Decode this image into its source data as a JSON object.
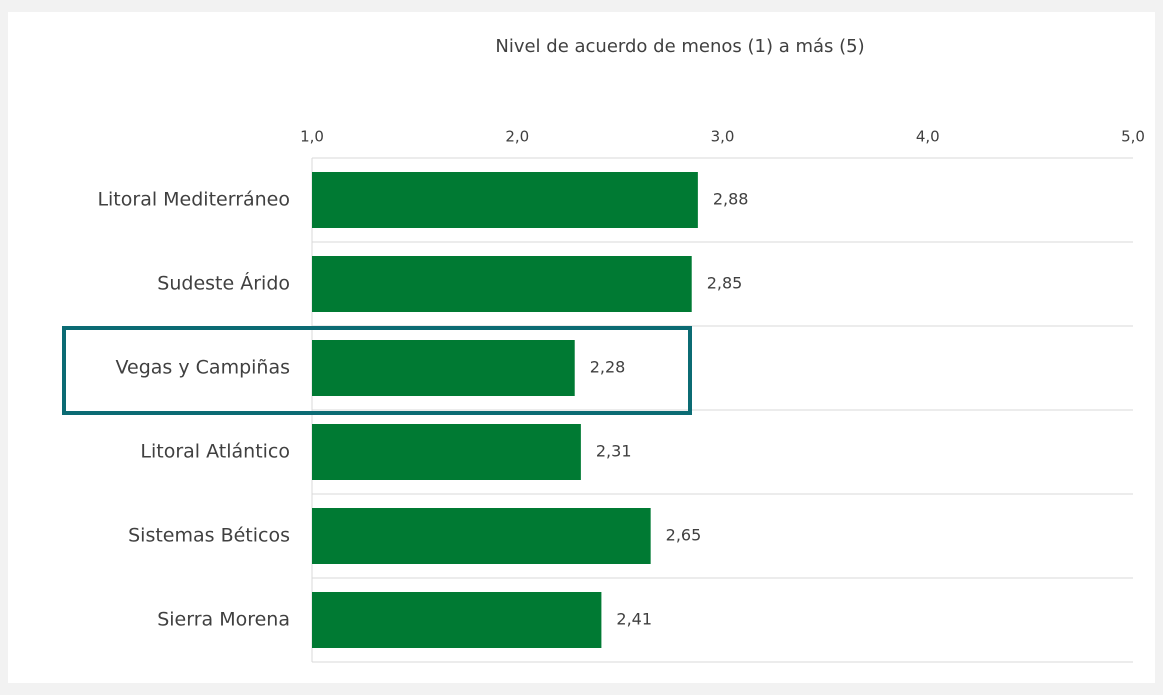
{
  "chart_data": {
    "type": "bar",
    "orientation": "horizontal",
    "title": "Nivel de acuerdo de menos (1) a más (5)",
    "categories": [
      "Litoral Mediterráneo",
      "Sudeste Árido",
      "Vegas y Campiñas",
      "Litoral Atlántico",
      "Sistemas Béticos",
      "Sierra Morena"
    ],
    "values": [
      2.88,
      2.85,
      2.28,
      2.31,
      2.65,
      2.41
    ],
    "value_labels": [
      "2,88",
      "2,85",
      "2,28",
      "2,31",
      "2,65",
      "2,41"
    ],
    "color": "#007a33",
    "xlim": [
      1,
      5
    ],
    "xticks": [
      {
        "value": 1,
        "label": "1,0"
      },
      {
        "value": 2,
        "label": "2,0"
      },
      {
        "value": 3,
        "label": "3,0"
      },
      {
        "value": 4,
        "label": "4,0"
      },
      {
        "value": 5,
        "label": "5,0"
      }
    ],
    "grid": true
  }
}
